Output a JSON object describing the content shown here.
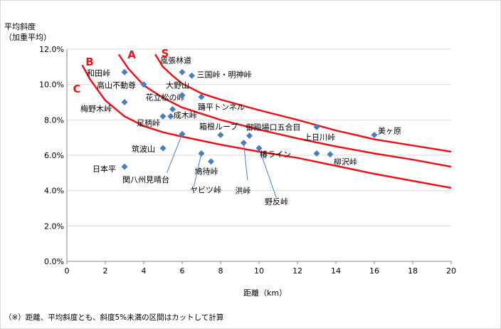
{
  "chart_data": {
    "type": "scatter",
    "ylabel": "平均斜度\n（加重平均）",
    "xlabel": "距離（km）",
    "footnote": "（※）距離、平均斜度とも、斜度5%未満の区間はカットして計算",
    "xlim": [
      0,
      20
    ],
    "ylim": [
      0,
      12
    ],
    "xticks": [
      "0",
      "2",
      "4",
      "6",
      "8",
      "10",
      "12",
      "14",
      "16",
      "18",
      "20"
    ],
    "yticks": [
      "0.0%",
      "2.0%",
      "4.0%",
      "6.0%",
      "8.0%",
      "10.0%",
      "12.0%"
    ],
    "marker_color": "#4a7ebb",
    "curve_color": "#e8141a",
    "points": [
      {
        "name": "和田峠",
        "x": 3.0,
        "y": 10.7
      },
      {
        "name": "高山不動尊",
        "x": 4.0,
        "y": 10.0
      },
      {
        "name": "梅野木峠",
        "x": 3.0,
        "y": 9.0
      },
      {
        "name": "花立松の峠",
        "x": 5.5,
        "y": 8.6
      },
      {
        "name": "風張林道",
        "x": 6.0,
        "y": 10.7
      },
      {
        "name": "三国峠・明神峠",
        "x": 6.5,
        "y": 10.5
      },
      {
        "name": "大野山",
        "x": 6.0,
        "y": 9.4
      },
      {
        "name": "踊平トンネル",
        "x": 7.0,
        "y": 9.3
      },
      {
        "name": "足柄峠",
        "x": 5.0,
        "y": 8.2
      },
      {
        "name": "成木峠",
        "x": 5.4,
        "y": 8.2
      },
      {
        "name": "関八州見晴台",
        "x": 6.0,
        "y": 7.2
      },
      {
        "name": "筑波山",
        "x": 5.0,
        "y": 6.4
      },
      {
        "name": "日本平",
        "x": 3.0,
        "y": 5.35
      },
      {
        "name": "ヤビツ峠",
        "x": 7.0,
        "y": 6.1
      },
      {
        "name": "鳩待峠",
        "x": 7.5,
        "y": 5.65
      },
      {
        "name": "箱根ループ",
        "x": 8.0,
        "y": 7.15
      },
      {
        "name": "御殿場口五合目",
        "x": 9.5,
        "y": 7.1
      },
      {
        "name": "洪峠",
        "x": 9.2,
        "y": 6.7
      },
      {
        "name": "野反峠",
        "x": 10.0,
        "y": 6.4
      },
      {
        "name": "上日川峠",
        "x": 13.0,
        "y": 7.6
      },
      {
        "name": "美ヶ原",
        "x": 16.0,
        "y": 7.15
      },
      {
        "name": "椿ライン",
        "x": 13.0,
        "y": 6.1
      },
      {
        "name": "柳沢峠",
        "x": 13.7,
        "y": 6.05
      }
    ],
    "curves": [
      {
        "name": "S",
        "points": [
          [
            4.6,
            11.7
          ],
          [
            5.0,
            11.0
          ],
          [
            5.5,
            10.5
          ],
          [
            6,
            10.05
          ],
          [
            7,
            9.5
          ],
          [
            8,
            9.15
          ],
          [
            10,
            8.55
          ],
          [
            12,
            8.0
          ],
          [
            14,
            7.4
          ],
          [
            16,
            6.9
          ],
          [
            18,
            6.55
          ],
          [
            20,
            6.2
          ]
        ]
      },
      {
        "name": "A",
        "points": [
          [
            2.7,
            11.7
          ],
          [
            3.2,
            10.9
          ],
          [
            4,
            9.95
          ],
          [
            5,
            9.25
          ],
          [
            6,
            8.7
          ],
          [
            8,
            8.0
          ],
          [
            10,
            7.45
          ],
          [
            12,
            6.95
          ],
          [
            14,
            6.5
          ],
          [
            16,
            6.1
          ],
          [
            18,
            5.75
          ],
          [
            20,
            5.35
          ]
        ]
      },
      {
        "name": "B",
        "points": [
          [
            0.8,
            11.1
          ],
          [
            1.2,
            10.3
          ],
          [
            2,
            9.1
          ],
          [
            3,
            8.2
          ],
          [
            4,
            7.65
          ],
          [
            5,
            7.3
          ],
          [
            6,
            7.05
          ],
          [
            8,
            6.6
          ],
          [
            10,
            6.2
          ],
          [
            12,
            5.85
          ],
          [
            14,
            5.4
          ],
          [
            16,
            4.95
          ],
          [
            18,
            4.55
          ],
          [
            20,
            4.15
          ]
        ]
      }
    ],
    "curve_labels": [
      "S",
      "A",
      "B",
      "C"
    ]
  }
}
